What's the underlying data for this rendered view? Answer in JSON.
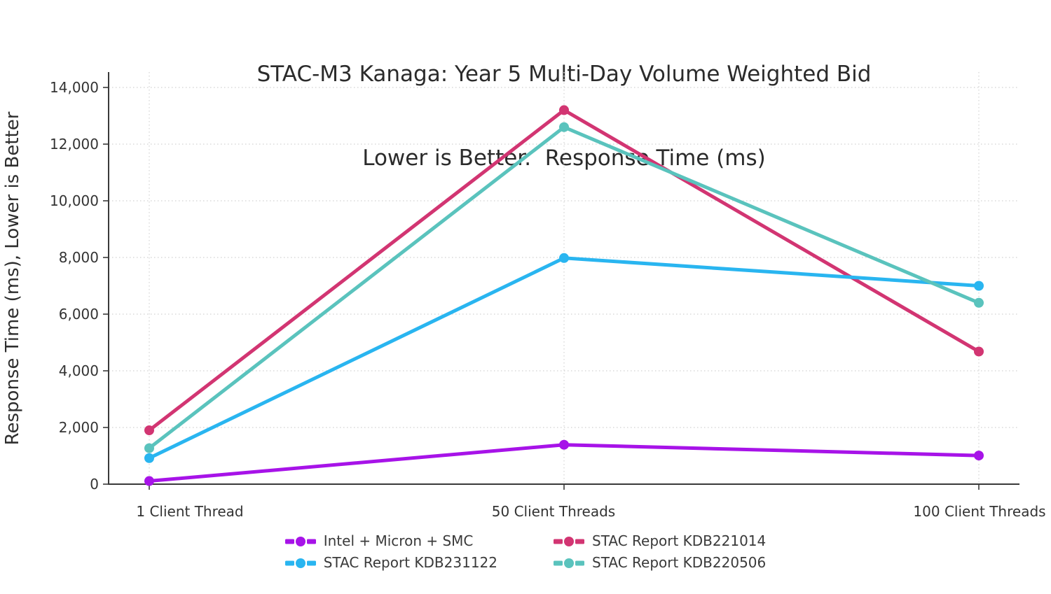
{
  "chart_data": {
    "type": "line",
    "title": "STAC-M3 Kanaga: Year 5 Multi-Day Volume Weighted Bid",
    "subtitle": "Lower is Better.  Response Time (ms)",
    "ylabel": "Response Time (ms), Lower is Better",
    "categories": [
      "1 Client Thread",
      "50 Client Threads",
      "100 Client Threads"
    ],
    "yticks": [
      "0",
      "2,000",
      "4,000",
      "6,000",
      "8,000",
      "10,000",
      "12,000",
      "14,000"
    ],
    "ylim": [
      0,
      14000
    ],
    "grid": "dotted",
    "legend_position": "bottom-center",
    "series": [
      {
        "name": "Intel + Micron + SMC",
        "color": "#A713E8",
        "values": [
          110,
          1390,
          1010
        ]
      },
      {
        "name": "STAC Report KDB221014",
        "color": "#D23572",
        "values": [
          1900,
          13200,
          4680
        ]
      },
      {
        "name": "STAC Report KDB231122",
        "color": "#29B5F0",
        "values": [
          920,
          7980,
          7000
        ]
      },
      {
        "name": "STAC Report KDB220506",
        "color": "#5AC3BD",
        "values": [
          1270,
          12600,
          6400
        ]
      }
    ]
  }
}
